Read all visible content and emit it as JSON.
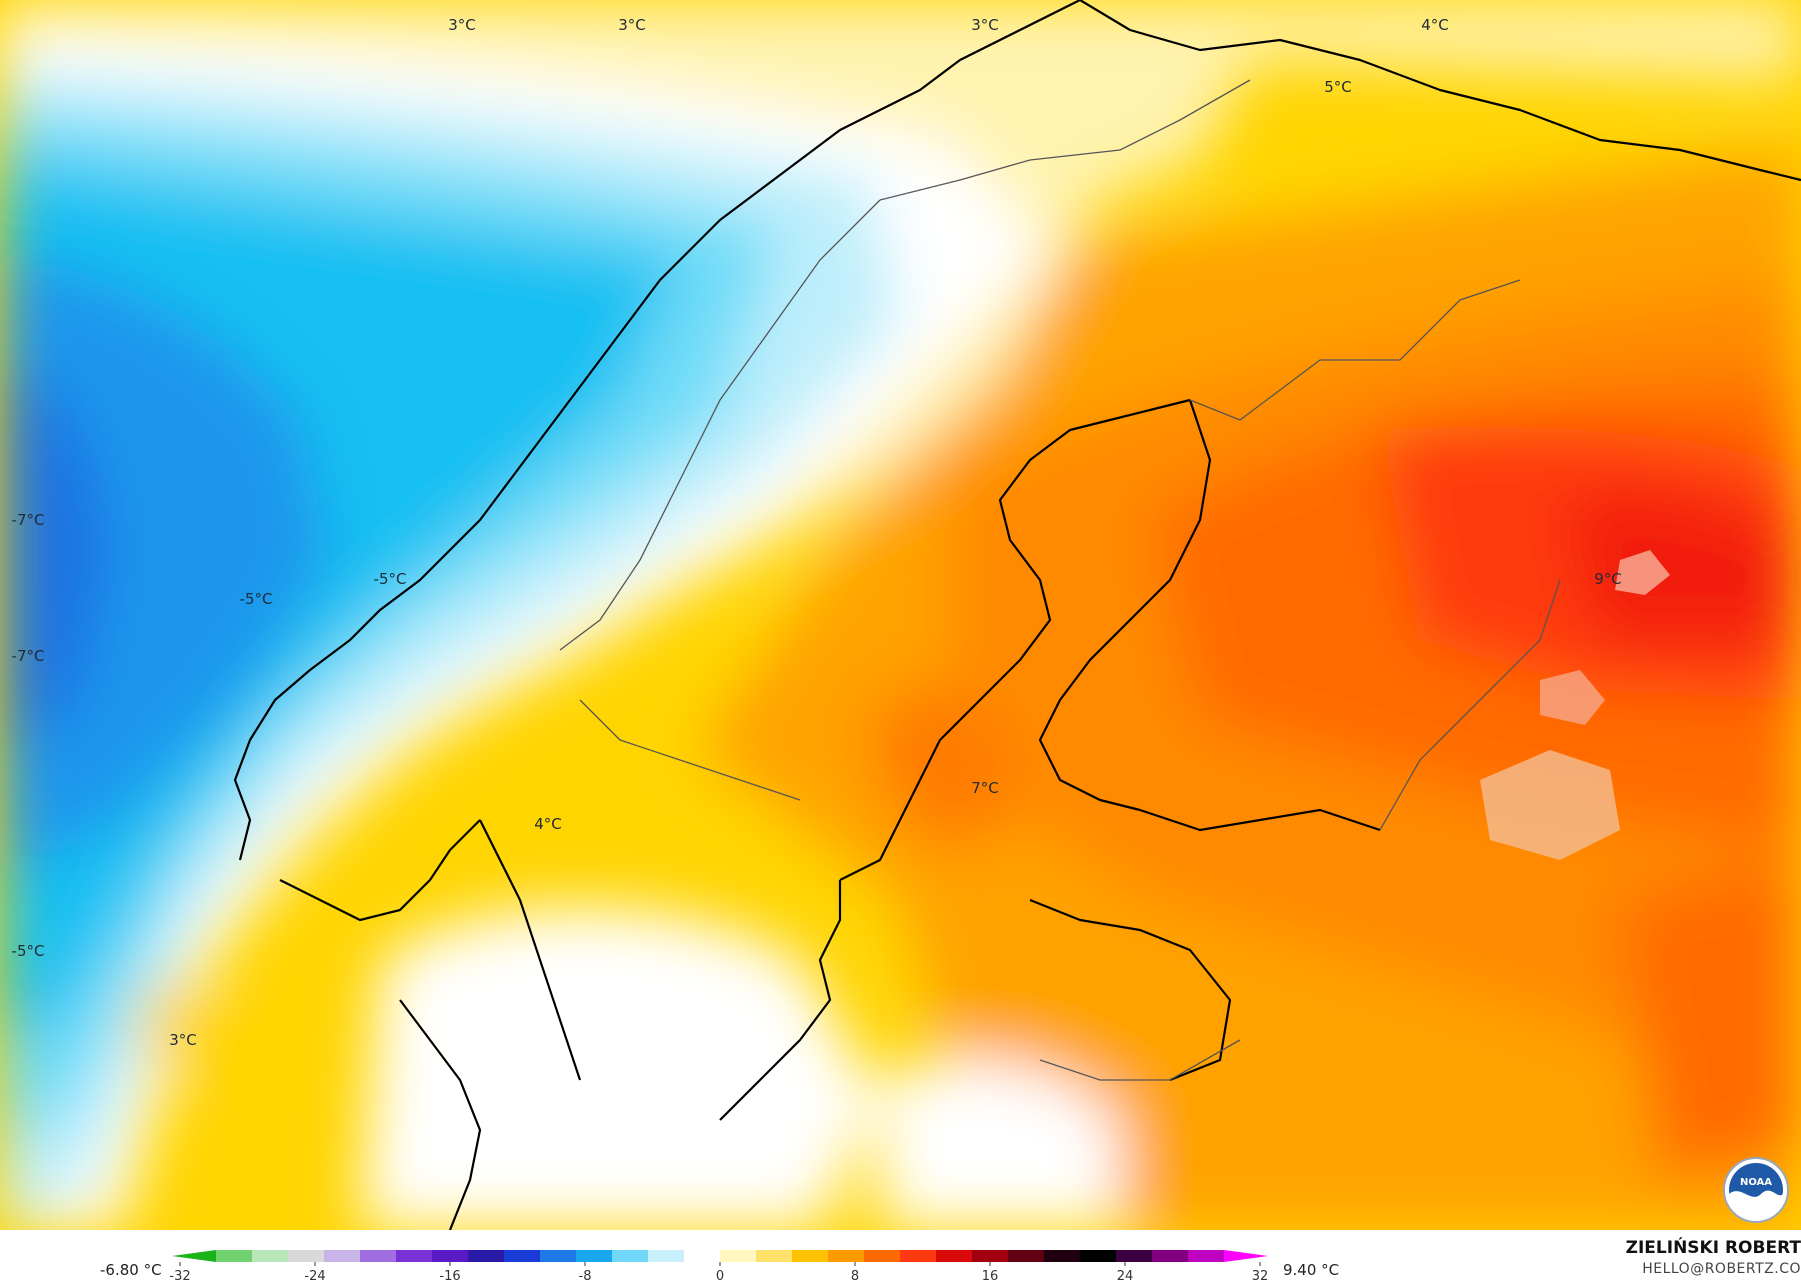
{
  "map": {
    "labels": [
      {
        "id": "t-north-1",
        "text": "3°C"
      },
      {
        "id": "t-north-2",
        "text": "3°C"
      },
      {
        "id": "t-north-3",
        "text": "3°C"
      },
      {
        "id": "t-north-4",
        "text": "4°C"
      },
      {
        "id": "t-north-5",
        "text": "5°C"
      },
      {
        "id": "t-west-1",
        "text": "-7°C"
      },
      {
        "id": "t-west-2",
        "text": "-7°C"
      },
      {
        "id": "t-sea-1",
        "text": "-5°C"
      },
      {
        "id": "t-sea-2",
        "text": "-5°C"
      },
      {
        "id": "t-west-3",
        "text": "-5°C"
      },
      {
        "id": "t-south-norway",
        "text": "4°C"
      },
      {
        "id": "t-sweden",
        "text": "7°C"
      },
      {
        "id": "t-russia",
        "text": "9°C"
      },
      {
        "id": "t-north-sea",
        "text": "3°C"
      }
    ],
    "logo_text": "NOAA"
  },
  "colorbar": {
    "min_label": "-6.80 °C",
    "max_label": "9.40 °C",
    "ticks": [
      "-32",
      "-24",
      "-16",
      "-8",
      "0",
      "8",
      "16",
      "24",
      "32"
    ],
    "colors": [
      "#1ab31a",
      "#6fd26f",
      "#b8e6b8",
      "#d9d9d9",
      "#c8b4e6",
      "#a06ee0",
      "#7a32d6",
      "#5a1ac8",
      "#2a1aa8",
      "#1a3ad6",
      "#1e78e6",
      "#19a8f0",
      "#6fd8f8",
      "#c8f0fc",
      "#ffffff",
      "#fff6c0",
      "#ffe16a",
      "#ffc200",
      "#ff9a00",
      "#ff6a00",
      "#ff3a10",
      "#d80a0a",
      "#a00010",
      "#600010",
      "#200010",
      "#000000",
      "#3a0040",
      "#800080",
      "#c000c0",
      "#ff00ff"
    ]
  },
  "credit": {
    "author": "ZIELIŃSKI ROBERT",
    "email": "HELLO@ROBERTZ.CO"
  }
}
